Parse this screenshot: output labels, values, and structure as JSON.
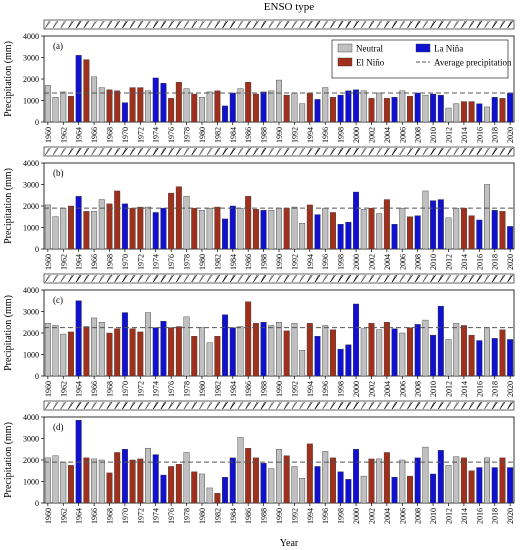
{
  "title": "ENSO type",
  "xlabel": "Year",
  "ylabel": "Precipitation (mm)",
  "legend": {
    "neutral": "Neutral",
    "elnino": "El Niño",
    "lanina": "La Niña",
    "average": "Average precipitation"
  },
  "colors": {
    "Neutral": "#c0c0c0",
    "El Niño": "#a0301c",
    "La Niña": "#1010d0",
    "average_line": "#555555"
  },
  "chart_data": {
    "type": "bar",
    "x": [
      1960,
      1961,
      1962,
      1963,
      1964,
      1965,
      1966,
      1967,
      1968,
      1969,
      1970,
      1971,
      1972,
      1973,
      1974,
      1975,
      1976,
      1977,
      1978,
      1979,
      1980,
      1981,
      1982,
      1983,
      1984,
      1985,
      1986,
      1987,
      1988,
      1989,
      1990,
      1991,
      1992,
      1993,
      1994,
      1995,
      1996,
      1997,
      1998,
      1999,
      2000,
      2001,
      2002,
      2003,
      2004,
      2005,
      2006,
      2007,
      2008,
      2009,
      2010,
      2011,
      2012,
      2013,
      2014,
      2015,
      2016,
      2017,
      2018,
      2019,
      2020
    ],
    "xticks": [
      1960,
      1962,
      1964,
      1966,
      1968,
      1970,
      1972,
      1974,
      1976,
      1978,
      1980,
      1982,
      1984,
      1986,
      1988,
      1990,
      1992,
      1994,
      1996,
      1998,
      2000,
      2002,
      2004,
      2006,
      2008,
      2010,
      2012,
      2014,
      2016,
      2018,
      2020
    ],
    "enso_type": [
      "N",
      "N",
      "N",
      "E",
      "L",
      "E",
      "N",
      "N",
      "E",
      "E",
      "L",
      "E",
      "E",
      "N",
      "L",
      "L",
      "E",
      "E",
      "N",
      "E",
      "N",
      "N",
      "E",
      "L",
      "L",
      "N",
      "E",
      "E",
      "L",
      "N",
      "N",
      "E",
      "N",
      "N",
      "E",
      "L",
      "N",
      "E",
      "L",
      "L",
      "L",
      "N",
      "E",
      "N",
      "E",
      "L",
      "N",
      "E",
      "L",
      "N",
      "L",
      "L",
      "N",
      "N",
      "E",
      "E",
      "L",
      "N",
      "L",
      "E",
      "L"
    ],
    "ylim": [
      0,
      4000
    ],
    "yticks": [
      0,
      1000,
      2000,
      3000,
      4000
    ],
    "panels": [
      {
        "label": "(a)",
        "average": 1350,
        "values": [
          1700,
          1150,
          1400,
          1200,
          3100,
          2900,
          2100,
          1600,
          1500,
          1450,
          900,
          1600,
          1600,
          1450,
          2050,
          1800,
          1100,
          1850,
          1550,
          1300,
          1150,
          1400,
          1450,
          750,
          1350,
          1550,
          1850,
          1300,
          1400,
          1450,
          1950,
          1250,
          1350,
          850,
          1350,
          1050,
          1600,
          1150,
          1250,
          1450,
          1500,
          1450,
          1100,
          1350,
          1100,
          1150,
          1450,
          1200,
          1350,
          1250,
          1300,
          1250,
          650,
          850,
          950,
          950,
          850,
          700,
          1150,
          1100,
          1350
        ]
      },
      {
        "label": "(b)",
        "average": 1900,
        "values": [
          2050,
          1500,
          1900,
          2000,
          2450,
          1750,
          1750,
          2300,
          2100,
          2700,
          2100,
          1900,
          1950,
          1950,
          1700,
          1900,
          2600,
          2900,
          2450,
          1900,
          1800,
          1900,
          1950,
          1400,
          2000,
          1900,
          2450,
          1850,
          1800,
          1800,
          1900,
          1900,
          1950,
          1200,
          2050,
          1600,
          1900,
          1700,
          1150,
          1250,
          2650,
          1850,
          1900,
          1650,
          2300,
          1150,
          1900,
          1500,
          1550,
          2700,
          2250,
          2300,
          1450,
          1900,
          1900,
          1550,
          1350,
          3000,
          1800,
          1750,
          1050
        ]
      },
      {
        "label": "(c)",
        "average": 2250,
        "values": [
          2450,
          2350,
          1950,
          2050,
          3500,
          2300,
          2700,
          2500,
          2000,
          2200,
          2950,
          2200,
          2050,
          2950,
          2250,
          2550,
          2250,
          2300,
          2750,
          1850,
          2250,
          1550,
          1850,
          2850,
          2250,
          2300,
          3450,
          2450,
          2500,
          2350,
          2500,
          2100,
          2450,
          1200,
          2450,
          1850,
          2350,
          2150,
          1250,
          1450,
          3350,
          2200,
          2450,
          2150,
          2500,
          2200,
          2000,
          2250,
          2400,
          2600,
          1900,
          3250,
          1700,
          2450,
          2350,
          1900,
          1650,
          2250,
          1750,
          2150,
          1700
        ]
      },
      {
        "label": "(d)",
        "average": 1900,
        "values": [
          2100,
          2200,
          1900,
          1750,
          3850,
          2100,
          2050,
          2000,
          1400,
          2350,
          2500,
          2000,
          2050,
          2550,
          2250,
          1300,
          1700,
          1800,
          2350,
          1450,
          1350,
          700,
          450,
          1200,
          2100,
          3050,
          2550,
          2100,
          1850,
          1600,
          2500,
          2200,
          1700,
          1150,
          2750,
          1700,
          2400,
          2100,
          1450,
          1100,
          2500,
          1250,
          2050,
          2050,
          2350,
          1200,
          2000,
          1250,
          2100,
          2600,
          1350,
          2450,
          1750,
          2150,
          2100,
          1500,
          1650,
          2100,
          1650,
          2100,
          1650
        ]
      }
    ]
  }
}
